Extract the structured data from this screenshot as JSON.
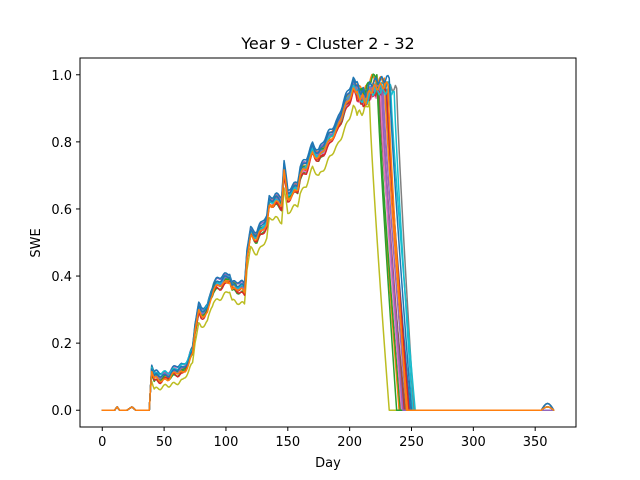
{
  "chart_data": {
    "type": "line",
    "title": "Year 9 - Cluster 2 - 32",
    "xlabel": "Day",
    "ylabel": "SWE",
    "xlim": [
      -18,
      383
    ],
    "ylim": [
      -0.05,
      1.05
    ],
    "xticks": [
      0,
      50,
      100,
      150,
      200,
      250,
      300,
      350
    ],
    "yticks": [
      0.0,
      0.2,
      0.4,
      0.6,
      0.8,
      1.0
    ],
    "xtick_labels": [
      "0",
      "50",
      "100",
      "150",
      "200",
      "250",
      "300",
      "350"
    ],
    "ytick_labels": [
      "0.0",
      "0.2",
      "0.4",
      "0.6",
      "0.8",
      "1.0"
    ],
    "grid": false,
    "legend": "none",
    "base_profile": {
      "x": [
        0,
        10,
        12,
        14,
        20,
        24,
        27,
        30,
        38,
        40,
        42,
        45,
        50,
        55,
        60,
        65,
        70,
        73,
        75,
        78,
        80,
        85,
        88,
        90,
        95,
        100,
        103,
        105,
        110,
        115,
        117,
        120,
        125,
        130,
        133,
        135,
        140,
        145,
        147,
        150,
        155,
        158,
        160,
        165,
        170,
        175,
        180,
        185,
        190,
        195,
        200,
        203,
        206,
        210,
        213,
        216,
        220
      ],
      "y": [
        0,
        0,
        0.01,
        0.0,
        0,
        0.01,
        0.0,
        0,
        0,
        0.13,
        0.1,
        0.1,
        0.1,
        0.11,
        0.12,
        0.12,
        0.15,
        0.18,
        0.25,
        0.3,
        0.29,
        0.3,
        0.35,
        0.37,
        0.38,
        0.39,
        0.4,
        0.37,
        0.37,
        0.36,
        0.47,
        0.53,
        0.52,
        0.55,
        0.56,
        0.62,
        0.63,
        0.62,
        0.72,
        0.64,
        0.66,
        0.67,
        0.71,
        0.73,
        0.78,
        0.76,
        0.79,
        0.82,
        0.85,
        0.9,
        0.94,
        0.97,
        0.95,
        0.93,
        0.91,
        0.94,
        0.96
      ]
    },
    "series": [
      {
        "color": "#1f77b4",
        "scale": 1.0,
        "offset": 0.0,
        "peak": 0.97,
        "melt_start": 225,
        "melt_end": 243,
        "end_bump": 0.01
      },
      {
        "color": "#ff7f0e",
        "scale": 1.01,
        "offset": 0.0,
        "peak": 1.0,
        "melt_start": 222,
        "melt_end": 240,
        "end_bump": 0.02
      },
      {
        "color": "#2ca02c",
        "scale": 0.99,
        "offset": -0.01,
        "peak": 0.95,
        "melt_start": 223,
        "melt_end": 241,
        "end_bump": 0.0
      },
      {
        "color": "#d62728",
        "scale": 0.98,
        "offset": 0.0,
        "peak": 0.95,
        "melt_start": 226,
        "melt_end": 244,
        "end_bump": 0.0
      },
      {
        "color": "#9467bd",
        "scale": 1.0,
        "offset": 0.01,
        "peak": 0.96,
        "melt_start": 227,
        "melt_end": 246,
        "end_bump": 0.01
      },
      {
        "color": "#8c564b",
        "scale": 0.99,
        "offset": 0.0,
        "peak": 0.94,
        "melt_start": 224,
        "melt_end": 245,
        "end_bump": 0.0
      },
      {
        "color": "#e377c2",
        "scale": 0.97,
        "offset": 0.01,
        "peak": 0.94,
        "melt_start": 225,
        "melt_end": 242,
        "end_bump": 0.0
      },
      {
        "color": "#7f7f7f",
        "scale": 1.0,
        "offset": 0.0,
        "peak": 0.96,
        "melt_start": 238,
        "melt_end": 252,
        "end_bump": 0.02
      },
      {
        "color": "#bcbd22",
        "scale": 0.96,
        "offset": -0.03,
        "peak": 0.92,
        "melt_start": 216,
        "melt_end": 232,
        "end_bump": 0.0
      },
      {
        "color": "#17becf",
        "scale": 1.0,
        "offset": 0.0,
        "peak": 0.97,
        "melt_start": 233,
        "melt_end": 253,
        "end_bump": 0.01
      },
      {
        "color": "#1f77b4",
        "scale": 1.01,
        "offset": 0.01,
        "peak": 0.98,
        "melt_start": 229,
        "melt_end": 249,
        "end_bump": 0.0
      },
      {
        "color": "#ff7f0e",
        "scale": 0.99,
        "offset": 0.0,
        "peak": 0.99,
        "melt_start": 228,
        "melt_end": 247,
        "end_bump": 0.01
      },
      {
        "color": "#2ca02c",
        "scale": 1.0,
        "offset": 0.0,
        "peak": 1.0,
        "melt_start": 222,
        "melt_end": 238,
        "end_bump": 0.0
      },
      {
        "color": "#d62728",
        "scale": 0.99,
        "offset": -0.01,
        "peak": 0.95,
        "melt_start": 230,
        "melt_end": 248,
        "end_bump": 0.0
      },
      {
        "color": "#9467bd",
        "scale": 1.0,
        "offset": 0.0,
        "peak": 0.96,
        "melt_start": 226,
        "melt_end": 243,
        "end_bump": 0.0
      },
      {
        "color": "#17becf",
        "scale": 0.98,
        "offset": 0.01,
        "peak": 0.95,
        "melt_start": 236,
        "melt_end": 251,
        "end_bump": 0.01
      },
      {
        "color": "#1f77b4",
        "scale": 1.01,
        "offset": 0.0,
        "peak": 0.99,
        "melt_start": 232,
        "melt_end": 250,
        "end_bump": 0.02
      },
      {
        "color": "#ff7f0e",
        "scale": 1.0,
        "offset": -0.01,
        "peak": 0.97,
        "melt_start": 231,
        "melt_end": 246,
        "end_bump": 0.01
      }
    ]
  }
}
